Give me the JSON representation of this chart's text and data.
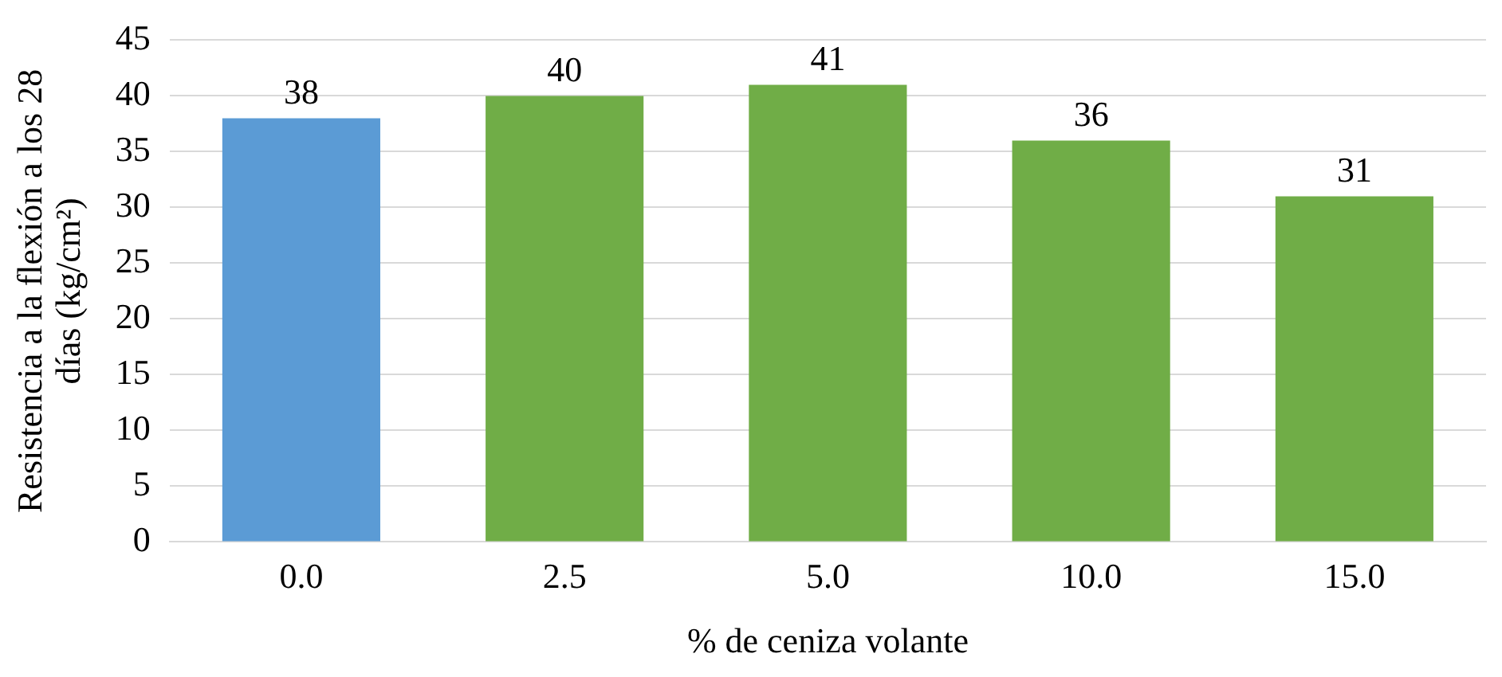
{
  "chart_data": {
    "type": "bar",
    "xlabel": "% de ceniza volante",
    "ylabel": "Resistencia a la flexión a los 28\ndías (kg/cm²)",
    "categories": [
      "0.0",
      "2.5",
      "5.0",
      "10.0",
      "15.0"
    ],
    "values": [
      38,
      40,
      41,
      36,
      31
    ],
    "colors": [
      "#5b9bd5",
      "#70ad47",
      "#70ad47",
      "#70ad47",
      "#70ad47"
    ],
    "ylim": [
      0,
      45
    ],
    "yticks": [
      0,
      5,
      10,
      15,
      20,
      25,
      30,
      35,
      40,
      45
    ],
    "grid": "y",
    "data_labels": true,
    "legend": false
  }
}
